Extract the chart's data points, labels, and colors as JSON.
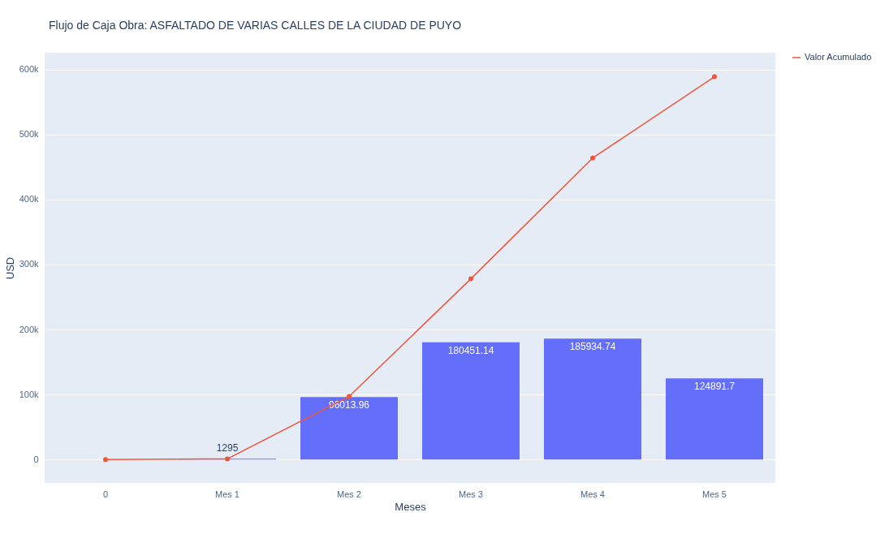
{
  "chart_data": {
    "type": "bar",
    "title": "Flujo de Caja  Obra: ASFALTADO DE VARIAS CALLES DE LA CIUDAD DE PUYO",
    "xlabel": "Meses",
    "ylabel": "USD",
    "categories": [
      "0",
      "Mes 1",
      "Mes 2",
      "Mes 3",
      "Mes 4",
      "Mes 5"
    ],
    "series": [
      {
        "color": "#636efa",
        "values": [
          0,
          1295,
          96013.96,
          180451.14,
          185934.74,
          124891.7
        ],
        "value_labels": [
          null,
          "1295",
          "96013.96",
          "180451.14",
          "185934.74",
          "124891.7"
        ]
      },
      {
        "type": "line",
        "name": "Valor Acumulado",
        "color": "#ef553b",
        "values": [
          0,
          1000,
          97000,
          278000,
          464000,
          589000
        ],
        "marker": "circle"
      }
    ],
    "ylim": [
      -36000,
      626000
    ],
    "yticks": [
      {
        "value": 0,
        "label": "0"
      },
      {
        "value": 100000,
        "label": "100k"
      },
      {
        "value": 200000,
        "label": "200k"
      },
      {
        "value": 300000,
        "label": "300k"
      },
      {
        "value": 400000,
        "label": "400k"
      },
      {
        "value": 500000,
        "label": "500k"
      },
      {
        "value": 600000,
        "label": "600k"
      }
    ],
    "grid": "y",
    "legend": "top right"
  }
}
